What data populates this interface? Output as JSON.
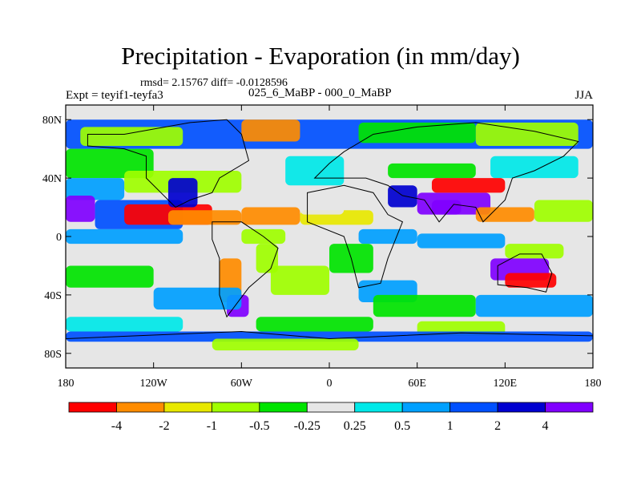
{
  "title": "Precipitation - Evaporation (in mm/day)",
  "stats_line": "rmsd= 2.15767 diff= -0.0128596",
  "experiment": "Expt = teyif1-teyfa3",
  "comparison": "025_6_MaBP - 000_0_MaBP",
  "season": "JJA",
  "chart_data": {
    "type": "heatmap",
    "title": "Precipitation - Evaporation (in mm/day)",
    "units": "mm/day",
    "x_ticks": [
      "180",
      "120W",
      "60W",
      "0",
      "60E",
      "120E",
      "180"
    ],
    "x_tick_values": [
      -180,
      -120,
      -60,
      0,
      60,
      120,
      180
    ],
    "xlim": [
      -180,
      180
    ],
    "y_ticks": [
      "80N",
      "40N",
      "0",
      "40S",
      "80S"
    ],
    "y_tick_values": [
      80,
      40,
      0,
      -40,
      -80
    ],
    "ylim": [
      -90,
      90
    ],
    "colorbar": {
      "levels": [
        "-4",
        "-2",
        "-1",
        "-0.5",
        "-0.25",
        "0.25",
        "0.5",
        "1",
        "2",
        "4"
      ],
      "colors": [
        "#ff0000",
        "#ff8c00",
        "#e8e800",
        "#a0ff00",
        "#00e400",
        "#e6e6e6",
        "#00e8e8",
        "#00a0ff",
        "#0050ff",
        "#0000d0",
        "#8000ff"
      ]
    }
  }
}
